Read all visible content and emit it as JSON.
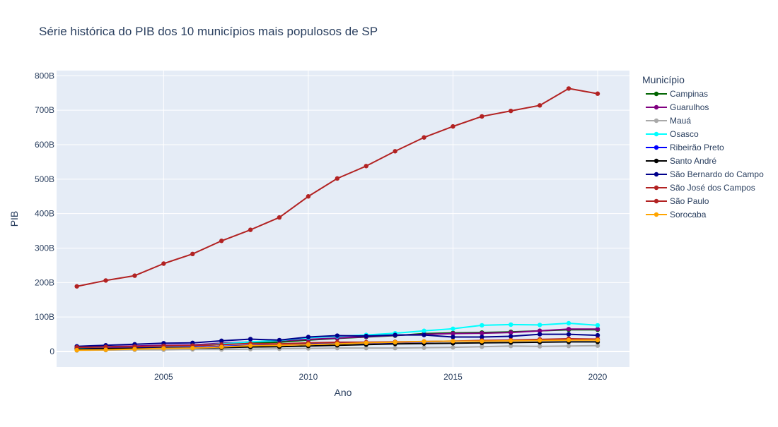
{
  "chart_data": {
    "type": "line",
    "title": "Série histórica do PIB dos 10 municípios mais populosos de SP",
    "xlabel": "Ano",
    "ylabel": "PIB",
    "xlim": [
      2001.3,
      2021.1
    ],
    "ylim": [
      -45,
      815
    ],
    "x_ticks": [
      2005,
      2010,
      2015,
      2020
    ],
    "x_tick_labels": [
      "2005",
      "2010",
      "2015",
      "2020"
    ],
    "y_ticks": [
      0,
      100,
      200,
      300,
      400,
      500,
      600,
      700,
      800
    ],
    "y_tick_labels": [
      "0",
      "100B",
      "200B",
      "300B",
      "400B",
      "500B",
      "600B",
      "700B",
      "800B"
    ],
    "grid": true,
    "legend_title": "Município",
    "legend_position": "right",
    "x": [
      2002,
      2003,
      2004,
      2005,
      2006,
      2007,
      2008,
      2009,
      2010,
      2011,
      2012,
      2013,
      2014,
      2015,
      2016,
      2017,
      2018,
      2019,
      2020
    ],
    "series": [
      {
        "name": "Campinas",
        "color": "#006400",
        "values": [
          10,
          12,
          14,
          16,
          17,
          20,
          25,
          27,
          33,
          38,
          42,
          46,
          52,
          54,
          55,
          57,
          60,
          63,
          63
        ]
      },
      {
        "name": "Guarulhos",
        "color": "#800080",
        "values": [
          12,
          14,
          16,
          18,
          19,
          24,
          28,
          31,
          35,
          39,
          43,
          47,
          50,
          52,
          53,
          55,
          60,
          65,
          65
        ]
      },
      {
        "name": "Mauá",
        "color": "#A9A9A9",
        "values": [
          3,
          4,
          5,
          5,
          6,
          6,
          7,
          8,
          9,
          10,
          10,
          10,
          11,
          12,
          14,
          16,
          15,
          16,
          17
        ]
      },
      {
        "name": "Osasco",
        "color": "#00FFFF",
        "values": [
          8,
          10,
          12,
          14,
          16,
          22,
          28,
          32,
          40,
          44,
          48,
          53,
          60,
          66,
          76,
          78,
          77,
          82,
          76
        ]
      },
      {
        "name": "Ribeirão Preto",
        "color": "#0000FF",
        "values": [
          7,
          9,
          10,
          11,
          12,
          15,
          18,
          20,
          22,
          23,
          24,
          26,
          28,
          30,
          31,
          32,
          34,
          36,
          35
        ]
      },
      {
        "name": "Santo André",
        "color": "#000000",
        "values": [
          7,
          8,
          9,
          10,
          10,
          11,
          13,
          14,
          16,
          18,
          20,
          22,
          23,
          24,
          25,
          26,
          27,
          28,
          28
        ]
      },
      {
        "name": "São Bernardo do Campo",
        "color": "#00008B",
        "values": [
          15,
          18,
          21,
          24,
          25,
          31,
          36,
          33,
          42,
          46,
          45,
          48,
          48,
          42,
          42,
          44,
          50,
          50,
          47
        ]
      },
      {
        "name": "São José dos Campos",
        "color": "#B22222",
        "values": [
          12,
          13,
          14,
          16,
          17,
          20,
          23,
          22,
          25,
          27,
          27,
          28,
          29,
          30,
          32,
          33,
          35,
          37,
          36
        ]
      },
      {
        "name": "São Paulo",
        "color": "#B22222",
        "values": [
          189,
          206,
          220,
          255,
          283,
          321,
          353,
          389,
          450,
          502,
          538,
          581,
          621,
          653,
          682,
          698,
          714,
          763,
          748
        ]
      },
      {
        "name": "Sorocaba",
        "color": "#FFA500",
        "values": [
          4,
          5,
          7,
          9,
          10,
          13,
          17,
          18,
          20,
          22,
          25,
          27,
          29,
          30,
          30,
          31,
          32,
          33,
          33
        ]
      }
    ]
  }
}
